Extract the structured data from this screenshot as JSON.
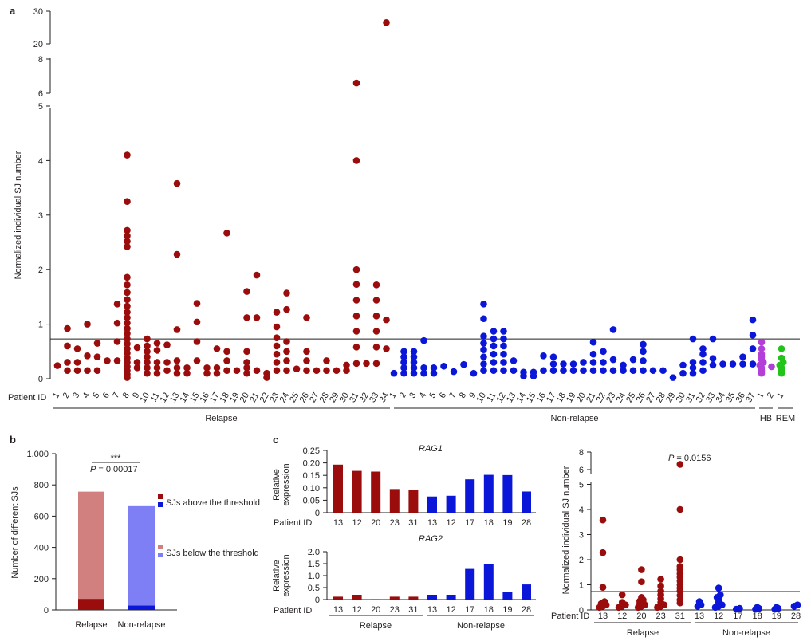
{
  "colors": {
    "relapse": "#9b0d0d",
    "nonrelapse": "#0a16d8",
    "hb": "#b33ed8",
    "rem": "#22c31a",
    "relapse_light": "#d17f7f",
    "nonrelapse_light": "#7f7ff5",
    "axis": "#231f20"
  },
  "panel_labels": {
    "a": "a",
    "b": "b",
    "c": "c"
  },
  "common": {
    "patient_id": "Patient ID"
  },
  "chart_data": [
    {
      "id": "a",
      "type": "scatter",
      "ylabel": "Normalized individual SJ number",
      "threshold": 0.73,
      "ytick_labels": [
        "0",
        "1",
        "2",
        "3",
        "4",
        "5",
        "6",
        "8",
        "20",
        "30"
      ],
      "groups": [
        {
          "name": "Relapse",
          "color_key": "relapse",
          "patients": [
            {
              "id": "1",
              "values": [
                0.24
              ]
            },
            {
              "id": "2",
              "values": [
                0.15,
                0.3,
                0.6,
                0.92
              ]
            },
            {
              "id": "3",
              "values": [
                0.15,
                0.3,
                0.55
              ]
            },
            {
              "id": "4",
              "values": [
                0.15,
                0.42,
                1.0
              ]
            },
            {
              "id": "5",
              "values": [
                0.15,
                0.4,
                0.65
              ]
            },
            {
              "id": "6",
              "values": [
                0.33
              ]
            },
            {
              "id": "7",
              "values": [
                0.33,
                0.68,
                1.02,
                1.37
              ]
            },
            {
              "id": "8",
              "values": [
                0.02,
                0.08,
                0.15,
                0.22,
                0.3,
                0.38,
                0.47,
                0.55,
                0.64,
                0.73,
                0.83,
                0.92,
                1.02,
                1.12,
                1.22,
                1.33,
                1.45,
                1.58,
                1.72,
                1.86,
                2.42,
                2.52,
                2.62,
                2.72,
                3.25,
                4.1
              ]
            },
            {
              "id": "9",
              "values": [
                0.2,
                0.3,
                0.57
              ]
            },
            {
              "id": "10",
              "values": [
                0.1,
                0.2,
                0.3,
                0.4,
                0.5,
                0.6,
                0.73
              ]
            },
            {
              "id": "11",
              "values": [
                0.1,
                0.2,
                0.3,
                0.52,
                0.65
              ]
            },
            {
              "id": "12",
              "values": [
                0.15,
                0.3,
                0.62
              ]
            },
            {
              "id": "13",
              "values": [
                0.1,
                0.2,
                0.33,
                0.9,
                2.28,
                3.58
              ]
            },
            {
              "id": "14",
              "values": [
                0.1,
                0.2
              ]
            },
            {
              "id": "15",
              "values": [
                0.33,
                0.68,
                1.04,
                1.38
              ]
            },
            {
              "id": "16",
              "values": [
                0.1,
                0.2
              ]
            },
            {
              "id": "17",
              "values": [
                0.1,
                0.2,
                0.55
              ]
            },
            {
              "id": "18",
              "values": [
                0.15,
                0.33,
                0.5,
                2.67
              ]
            },
            {
              "id": "19",
              "values": [
                0.15
              ]
            },
            {
              "id": "20",
              "values": [
                0.1,
                0.2,
                0.3,
                0.5,
                1.12,
                1.6
              ]
            },
            {
              "id": "21",
              "values": [
                0.15,
                1.12,
                1.9
              ]
            },
            {
              "id": "22",
              "values": [
                0.02,
                0.1
              ]
            },
            {
              "id": "23",
              "values": [
                0.15,
                0.3,
                0.45,
                0.6,
                0.75,
                0.95,
                1.22
              ]
            },
            {
              "id": "24",
              "values": [
                0.15,
                0.33,
                0.5,
                0.68,
                1.27,
                1.57
              ]
            },
            {
              "id": "25",
              "values": [
                0.18
              ]
            },
            {
              "id": "26",
              "values": [
                0.15,
                0.33,
                0.5,
                1.12
              ]
            },
            {
              "id": "27",
              "values": [
                0.15
              ]
            },
            {
              "id": "28",
              "values": [
                0.15,
                0.33
              ]
            },
            {
              "id": "29",
              "values": [
                0.15
              ]
            },
            {
              "id": "30",
              "values": [
                0.15,
                0.25
              ]
            },
            {
              "id": "31",
              "values": [
                0.28,
                0.58,
                0.87,
                1.15,
                1.44,
                1.73,
                2.0,
                4.0,
                6.6
              ]
            },
            {
              "id": "32",
              "values": [
                0.28
              ]
            },
            {
              "id": "33",
              "values": [
                0.28,
                0.58,
                0.87,
                1.15,
                1.44,
                1.72
              ]
            },
            {
              "id": "34",
              "values": [
                0.55,
                1.08,
                26.5
              ]
            }
          ]
        },
        {
          "name": "Non-relapse",
          "color_key": "nonrelapse",
          "patients": [
            {
              "id": "1",
              "values": [
                0.1
              ]
            },
            {
              "id": "2",
              "values": [
                0.1,
                0.2,
                0.3,
                0.4,
                0.5
              ]
            },
            {
              "id": "3",
              "values": [
                0.1,
                0.2,
                0.3,
                0.4,
                0.5
              ]
            },
            {
              "id": "4",
              "values": [
                0.1,
                0.2,
                0.7
              ]
            },
            {
              "id": "5",
              "values": [
                0.1,
                0.2
              ]
            },
            {
              "id": "6",
              "values": [
                0.23
              ]
            },
            {
              "id": "7",
              "values": [
                0.13
              ]
            },
            {
              "id": "8",
              "values": [
                0.26
              ]
            },
            {
              "id": "9",
              "values": [
                0.1
              ]
            },
            {
              "id": "10",
              "values": [
                0.15,
                0.27,
                0.4,
                0.53,
                0.65,
                0.78,
                1.1,
                1.37
              ]
            },
            {
              "id": "11",
              "values": [
                0.15,
                0.3,
                0.45,
                0.6,
                0.73,
                0.87
              ]
            },
            {
              "id": "12",
              "values": [
                0.15,
                0.3,
                0.45,
                0.6,
                0.73,
                0.87
              ]
            },
            {
              "id": "13",
              "values": [
                0.15,
                0.33
              ]
            },
            {
              "id": "14",
              "values": [
                0.05,
                0.12
              ]
            },
            {
              "id": "15",
              "values": [
                0.05,
                0.12
              ]
            },
            {
              "id": "16",
              "values": [
                0.15,
                0.42
              ]
            },
            {
              "id": "17",
              "values": [
                0.15,
                0.27,
                0.4
              ]
            },
            {
              "id": "18",
              "values": [
                0.15,
                0.27
              ]
            },
            {
              "id": "19",
              "values": [
                0.15,
                0.27
              ]
            },
            {
              "id": "20",
              "values": [
                0.15,
                0.3
              ]
            },
            {
              "id": "21",
              "values": [
                0.15,
                0.3,
                0.45,
                0.67
              ]
            },
            {
              "id": "22",
              "values": [
                0.15,
                0.3,
                0.5
              ]
            },
            {
              "id": "23",
              "values": [
                0.15,
                0.35,
                0.9
              ]
            },
            {
              "id": "24",
              "values": [
                0.15,
                0.25
              ]
            },
            {
              "id": "25",
              "values": [
                0.15,
                0.35
              ]
            },
            {
              "id": "26",
              "values": [
                0.15,
                0.33,
                0.5,
                0.63
              ]
            },
            {
              "id": "27",
              "values": [
                0.15
              ]
            },
            {
              "id": "28",
              "values": [
                0.15
              ]
            },
            {
              "id": "29",
              "values": [
                0.02
              ]
            },
            {
              "id": "30",
              "values": [
                0.1,
                0.25
              ]
            },
            {
              "id": "31",
              "values": [
                0.1,
                0.2,
                0.3,
                0.73
              ]
            },
            {
              "id": "32",
              "values": [
                0.15,
                0.3,
                0.45,
                0.55
              ]
            },
            {
              "id": "33",
              "values": [
                0.25,
                0.37,
                0.73
              ]
            },
            {
              "id": "34",
              "values": [
                0.27
              ]
            },
            {
              "id": "35",
              "values": [
                0.27
              ]
            },
            {
              "id": "36",
              "values": [
                0.27,
                0.4
              ]
            },
            {
              "id": "37",
              "values": [
                0.27,
                0.55,
                0.8,
                1.08
              ]
            }
          ]
        },
        {
          "name": "HB",
          "color_key": "hb",
          "patients": [
            {
              "id": "1",
              "values": [
                0.1,
                0.15,
                0.2,
                0.25,
                0.3,
                0.35,
                0.4,
                0.45,
                0.55,
                0.67
              ]
            },
            {
              "id": "2",
              "values": [
                0.22
              ]
            }
          ]
        },
        {
          "name": "REM",
          "color_key": "rem",
          "patients": [
            {
              "id": "1",
              "values": [
                0.1,
                0.15,
                0.2,
                0.25,
                0.3,
                0.38,
                0.55
              ]
            }
          ]
        }
      ]
    },
    {
      "id": "b",
      "type": "bar",
      "ylabel": "Number of different SJs",
      "ylim": [
        0,
        1000
      ],
      "ytick_labels": [
        "0",
        "200",
        "400",
        "600",
        "800",
        "1,000"
      ],
      "categories": [
        "Relapse",
        "Non-relapse"
      ],
      "series": [
        {
          "name": "SJs above the threshold",
          "values": [
            71,
            29
          ],
          "colors": [
            "relapse",
            "nonrelapse"
          ]
        },
        {
          "name": "SJs below the threshold",
          "values": [
            686,
            635
          ],
          "colors": [
            "relapse_light",
            "nonrelapse_light"
          ]
        }
      ],
      "significance": "***",
      "pvalue_prefix": "P",
      "pvalue_value": " = 0.00017"
    },
    {
      "id": "c-rag1",
      "type": "bar",
      "title": "RAG1",
      "ylabel_lines": [
        "Relative",
        "expression"
      ],
      "ylim": [
        0,
        0.25
      ],
      "ytick_labels": [
        "0",
        "0.05",
        "0.10",
        "0.15",
        "0.20",
        "0.25"
      ],
      "categories": [
        "13",
        "12",
        "20",
        "23",
        "31",
        "13",
        "12",
        "17",
        "18",
        "19",
        "28"
      ],
      "values": [
        0.193,
        0.168,
        0.165,
        0.095,
        0.09,
        0.065,
        0.068,
        0.134,
        0.152,
        0.151,
        0.085
      ],
      "groups": [
        {
          "name": "Relapse",
          "count": 5,
          "color_key": "relapse"
        },
        {
          "name": "Non-relapse",
          "count": 6,
          "color_key": "nonrelapse"
        }
      ]
    },
    {
      "id": "c-rag2",
      "type": "bar",
      "title": "RAG2",
      "ylabel_lines": [
        "Relative",
        "expression"
      ],
      "ylim": [
        0,
        2.0
      ],
      "ytick_labels": [
        "0",
        "0.5",
        "1.0",
        "1.5",
        "2.0"
      ],
      "categories": [
        "13",
        "12",
        "20",
        "23",
        "31",
        "13",
        "12",
        "17",
        "18",
        "19",
        "28"
      ],
      "values": [
        0.12,
        0.2,
        0.02,
        0.12,
        0.12,
        0.2,
        0.2,
        1.28,
        1.5,
        0.3,
        0.63
      ],
      "groups": [
        {
          "name": "Relapse",
          "count": 5,
          "color_key": "relapse"
        },
        {
          "name": "Non-relapse",
          "count": 6,
          "color_key": "nonrelapse"
        }
      ]
    },
    {
      "id": "c-sj",
      "type": "scatter",
      "ylabel": "Normalized individual SJ number",
      "threshold": 0.73,
      "ytick_labels": [
        "0",
        "1",
        "2",
        "3",
        "4",
        "5",
        "6",
        "8"
      ],
      "pvalue_prefix": "P",
      "pvalue_value": " = 0.0156",
      "groups": [
        {
          "name": "Relapse",
          "color_key": "relapse",
          "patients": [
            {
              "id": "13",
              "values": [
                0.1,
                0.15,
                0.2,
                0.25,
                0.33,
                0.9,
                2.28,
                3.58
              ]
            },
            {
              "id": "12",
              "values": [
                0.1,
                0.15,
                0.2,
                0.3,
                0.6
              ]
            },
            {
              "id": "20",
              "values": [
                0.1,
                0.15,
                0.2,
                0.25,
                0.3,
                0.35,
                0.4,
                0.5,
                1.12,
                1.6
              ]
            },
            {
              "id": "23",
              "values": [
                0.1,
                0.15,
                0.2,
                0.3,
                0.45,
                0.6,
                0.75,
                0.95,
                1.22
              ]
            },
            {
              "id": "31",
              "values": [
                0.28,
                0.4,
                0.58,
                0.75,
                0.87,
                1.0,
                1.15,
                1.3,
                1.44,
                1.6,
                1.73,
                2.0,
                4.0,
                6.6
              ]
            }
          ]
        },
        {
          "name": "Non-relapse",
          "color_key": "nonrelapse",
          "patients": [
            {
              "id": "13",
              "values": [
                0.15,
                0.2,
                0.33
              ]
            },
            {
              "id": "12",
              "values": [
                0.1,
                0.15,
                0.2,
                0.3,
                0.4,
                0.5,
                0.6,
                0.87
              ]
            },
            {
              "id": "17",
              "values": [
                0.03,
                0.06
              ]
            },
            {
              "id": "18",
              "values": [
                0.03,
                0.06,
                0.1
              ]
            },
            {
              "id": "19",
              "values": [
                0.03,
                0.06,
                0.1
              ]
            },
            {
              "id": "28",
              "values": [
                0.15,
                0.2
              ]
            }
          ]
        }
      ]
    }
  ]
}
